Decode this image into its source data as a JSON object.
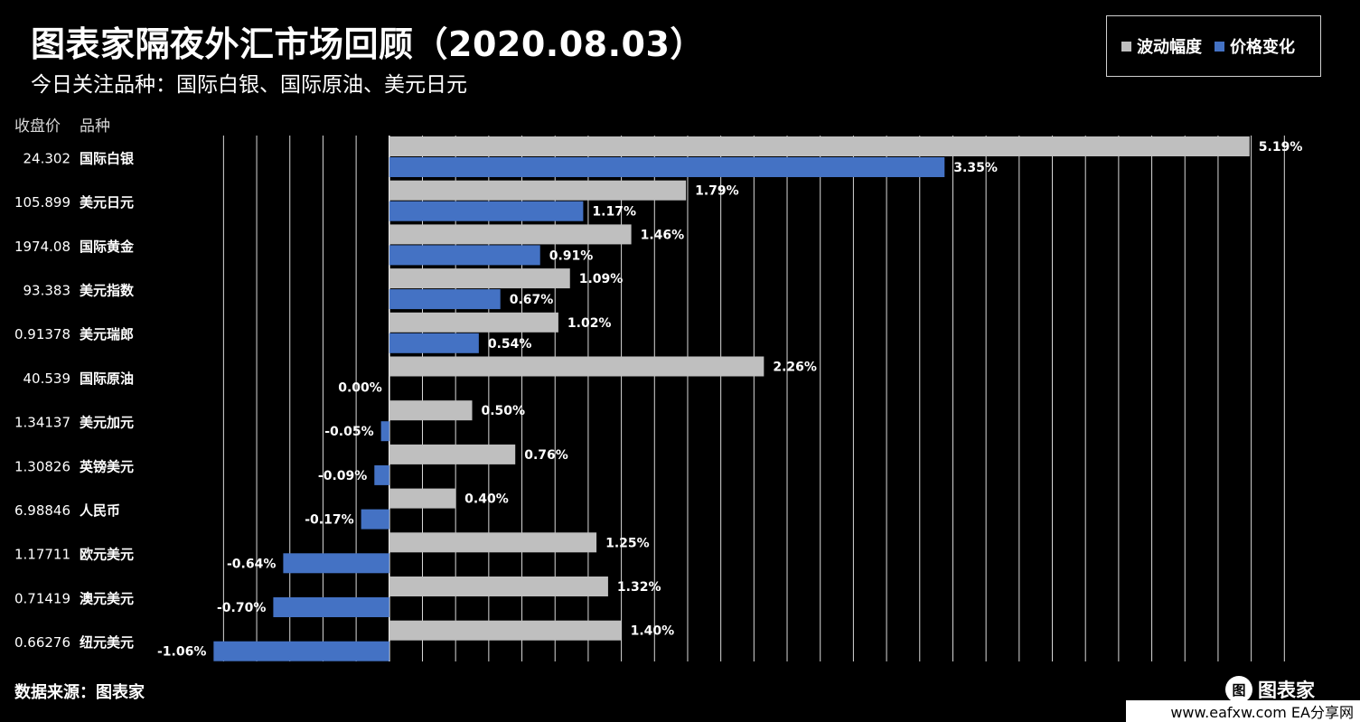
{
  "header": {
    "title": "图表家隔夜外汇市场回顾（2020.08.03）",
    "subtitle": "今日关注品种：国际白银、国际原油、美元日元"
  },
  "legend": {
    "volatility_label": "波动幅度",
    "change_label": "价格变化"
  },
  "columns": {
    "close_header": "收盘价",
    "name_header": "品种"
  },
  "colors": {
    "background": "#000000",
    "volatility": "#bfbfbf",
    "change": "#4472c4",
    "grid": "#d9d9d9"
  },
  "chart_data": {
    "type": "bar",
    "orientation": "horizontal",
    "categories": [
      "国际白银",
      "美元日元",
      "国际黄金",
      "美元指数",
      "美元瑞郎",
      "国际原油",
      "美元加元",
      "英镑美元",
      "人民币",
      "欧元美元",
      "澳元美元",
      "纽元美元"
    ],
    "close_prices": [
      "24.302",
      "105.899",
      "1974.08",
      "93.383",
      "0.91378",
      "40.539",
      "1.34137",
      "1.30826",
      "6.98846",
      "1.17711",
      "0.71419",
      "0.66276"
    ],
    "series": [
      {
        "name": "波动幅度",
        "values": [
          5.19,
          1.79,
          1.46,
          1.09,
          1.02,
          2.26,
          0.5,
          0.76,
          0.4,
          1.25,
          1.32,
          1.4
        ],
        "labels": [
          "5.19%",
          "1.79%",
          "1.46%",
          "1.09%",
          "1.02%",
          "2.26%",
          "0.50%",
          "0.76%",
          "0.40%",
          "1.25%",
          "1.32%",
          "1.40%"
        ]
      },
      {
        "name": "价格变化",
        "values": [
          3.35,
          1.17,
          0.91,
          0.67,
          0.54,
          0.0,
          -0.05,
          -0.09,
          -0.17,
          -0.64,
          -0.7,
          -1.06
        ],
        "labels": [
          "3.35%",
          "1.17%",
          "0.91%",
          "0.67%",
          "0.54%",
          "0.00%",
          "-0.05%",
          "-0.09%",
          "-0.17%",
          "-0.64%",
          "-0.70%",
          "-1.06%"
        ]
      }
    ],
    "xlim": [
      -1.4,
      5.6
    ],
    "grid": true,
    "legend_position": "top-right"
  },
  "footer": {
    "source": "数据来源：图表家",
    "brand": "图表家",
    "watermark": "www.eafxw.com   EA分享网"
  }
}
